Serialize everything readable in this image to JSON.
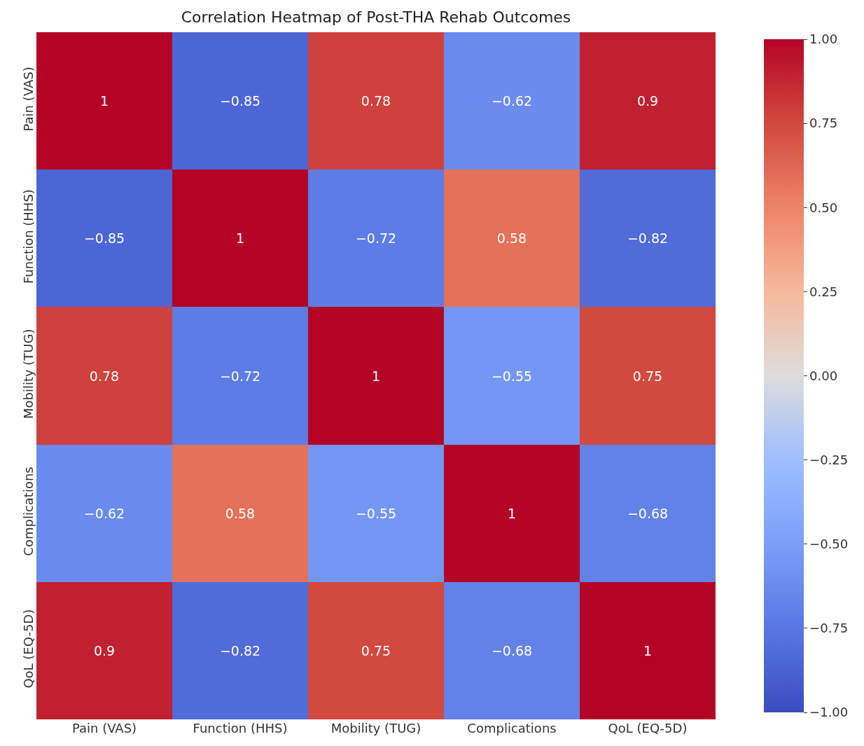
{
  "chart_data": {
    "type": "heatmap",
    "title": "Correlation Heatmap of Post-THA Rehab Outcomes",
    "categories": [
      "Pain (VAS)",
      "Function (HHS)",
      "Mobility (TUG)",
      "Complications",
      "QoL (EQ-5D)"
    ],
    "y_categories": [
      "Pain (VAS)",
      "Function (HHS)",
      "Mobility (TUG)",
      "Complications",
      "QoL (EQ-5D)"
    ],
    "cells": [
      [
        1,
        -0.85,
        0.78,
        -0.62,
        0.9
      ],
      [
        -0.85,
        1,
        -0.72,
        0.58,
        -0.82
      ],
      [
        0.78,
        -0.72,
        1,
        -0.55,
        0.75
      ],
      [
        -0.62,
        0.58,
        -0.55,
        1,
        -0.68
      ],
      [
        0.9,
        -0.82,
        0.75,
        -0.68,
        1
      ]
    ],
    "data_labels": true,
    "clim": [
      -1,
      1
    ],
    "cticks": [
      {
        "value": 1,
        "label": "1.00"
      },
      {
        "value": 0.75,
        "label": "0.75"
      },
      {
        "value": 0.5,
        "label": "0.50"
      },
      {
        "value": 0.25,
        "label": "0.25"
      },
      {
        "value": 0,
        "label": "0.00"
      },
      {
        "value": -0.25,
        "label": "−0.25"
      },
      {
        "value": -0.5,
        "label": "−0.50"
      },
      {
        "value": -0.75,
        "label": "−0.75"
      },
      {
        "value": -1,
        "label": "−1.00"
      }
    ]
  }
}
